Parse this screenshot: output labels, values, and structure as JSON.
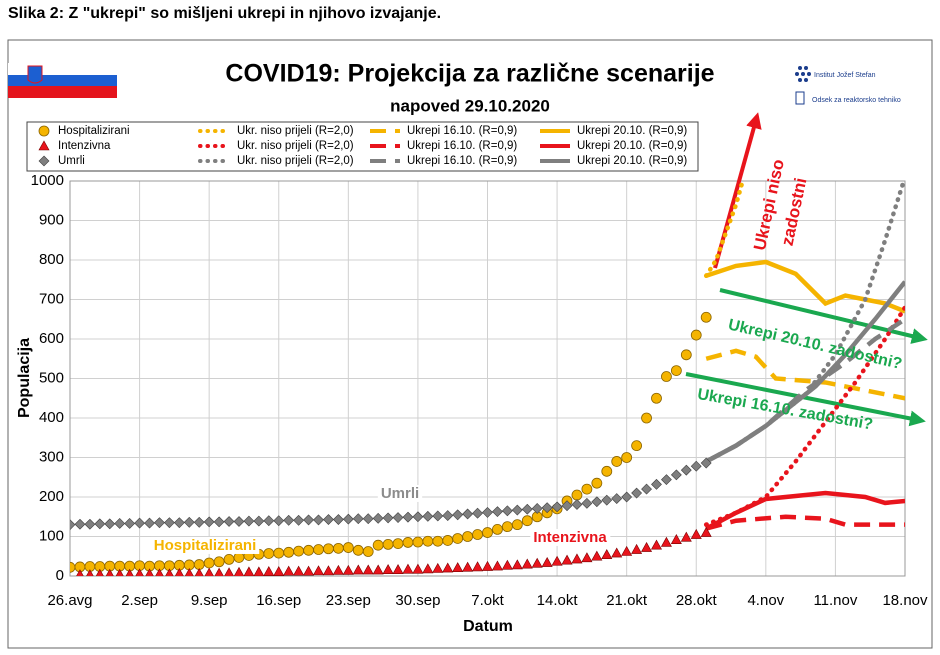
{
  "caption": "Slika 2: Z \"ukrepi\" so mišljeni ukrepi in njihovo izvajanje.",
  "logo": {
    "institute": "Institut Jožef Stefan",
    "department": "Odsek za reaktorsko tehniko"
  },
  "chart_data": {
    "type": "line",
    "title": "COVID19: Projekcija za različne scenarije",
    "subtitle": "napoved 29.10.2020",
    "x_label": "Datum",
    "y_label": "Populacija",
    "grid": true,
    "xlim": [
      0,
      84
    ],
    "xticks": [
      {
        "value": 0,
        "label": "26.avg"
      },
      {
        "value": 7,
        "label": "2.sep"
      },
      {
        "value": 14,
        "label": "9.sep"
      },
      {
        "value": 21,
        "label": "16.sep"
      },
      {
        "value": 28,
        "label": "23.sep"
      },
      {
        "value": 35,
        "label": "30.sep"
      },
      {
        "value": 42,
        "label": "7.okt"
      },
      {
        "value": 49,
        "label": "14.okt"
      },
      {
        "value": 56,
        "label": "21.okt"
      },
      {
        "value": 63,
        "label": "28.okt"
      },
      {
        "value": 70,
        "label": "4.nov"
      },
      {
        "value": 77,
        "label": "11.nov"
      },
      {
        "value": 84,
        "label": "18.nov"
      }
    ],
    "ylim": [
      0,
      1000
    ],
    "yticks": [
      0,
      100,
      200,
      300,
      400,
      500,
      600,
      700,
      800,
      900,
      1000
    ],
    "series": [
      {
        "name": "Hospitalizirani",
        "color": "#f5b400",
        "marker": "circle",
        "x": [
          0,
          1,
          2,
          3,
          4,
          5,
          6,
          7,
          8,
          9,
          10,
          11,
          12,
          13,
          14,
          15,
          16,
          17,
          18,
          19,
          20,
          21,
          22,
          23,
          24,
          25,
          26,
          27,
          28,
          29,
          30,
          31,
          32,
          33,
          34,
          35,
          36,
          37,
          38,
          39,
          40,
          41,
          42,
          43,
          44,
          45,
          46,
          47,
          48,
          49,
          50,
          51,
          52,
          53,
          54,
          55,
          56,
          57,
          58,
          59,
          60,
          61,
          62,
          63,
          64
        ],
        "values": [
          22,
          23,
          24,
          24,
          25,
          25,
          25,
          26,
          25,
          26,
          26,
          27,
          28,
          29,
          33,
          36,
          42,
          47,
          52,
          55,
          57,
          58,
          60,
          63,
          65,
          67,
          69,
          70,
          72,
          65,
          62,
          78,
          80,
          82,
          85,
          86,
          88,
          88,
          90,
          95,
          100,
          105,
          110,
          118,
          125,
          130,
          140,
          150,
          160,
          170,
          190,
          205,
          220,
          235,
          265,
          290,
          300,
          330,
          400,
          450,
          505,
          520,
          560,
          610,
          655
        ]
      },
      {
        "name": "Ukr. niso prijeli (R=2,0)",
        "color": "#f5b400",
        "dash": "dotted",
        "x": [
          64,
          65,
          66,
          67,
          68
        ],
        "values": [
          760,
          800,
          870,
          940,
          1030
        ]
      },
      {
        "name": "Ukrepi 16.10. (R=0,9)",
        "color": "#f5b400",
        "dash": "dashed",
        "x": [
          64,
          67,
          69,
          71,
          76,
          80,
          84
        ],
        "values": [
          550,
          570,
          555,
          500,
          490,
          470,
          450
        ]
      },
      {
        "name": "Ukrepi 20.10. (R=0,9)",
        "color": "#f5b400",
        "dash": "solid",
        "x": [
          64,
          67,
          70,
          73,
          76,
          78,
          80,
          82,
          84
        ],
        "values": [
          760,
          785,
          795,
          765,
          690,
          710,
          700,
          690,
          670
        ]
      },
      {
        "name": "Intenzivna",
        "color": "#e8141c",
        "marker": "triangle",
        "x": [
          1,
          2,
          3,
          4,
          5,
          6,
          7,
          8,
          9,
          10,
          11,
          12,
          13,
          14,
          15,
          16,
          17,
          18,
          19,
          20,
          21,
          22,
          23,
          24,
          25,
          26,
          27,
          28,
          29,
          30,
          31,
          32,
          33,
          34,
          35,
          36,
          37,
          38,
          39,
          40,
          41,
          42,
          43,
          44,
          45,
          46,
          47,
          48,
          49,
          50,
          51,
          52,
          53,
          54,
          55,
          56,
          57,
          58,
          59,
          60,
          61,
          62,
          63,
          64
        ],
        "values": [
          3,
          3,
          4,
          4,
          4,
          4,
          5,
          5,
          5,
          5,
          6,
          6,
          6,
          7,
          7,
          8,
          9,
          10,
          10,
          11,
          11,
          12,
          12,
          12,
          13,
          13,
          14,
          14,
          15,
          15,
          15,
          16,
          16,
          17,
          17,
          18,
          19,
          20,
          21,
          22,
          23,
          24,
          25,
          27,
          28,
          30,
          32,
          34,
          37,
          40,
          43,
          46,
          50,
          54,
          58,
          62,
          67,
          72,
          78,
          85,
          92,
          98,
          105,
          110
        ]
      },
      {
        "name": "Ukr. niso prijeli (R=2,0)",
        "color": "#e8141c",
        "dash": "dotted",
        "x": [
          64,
          67,
          70,
          73,
          76,
          79,
          82,
          84
        ],
        "values": [
          130,
          160,
          200,
          290,
          390,
          490,
          600,
          680
        ]
      },
      {
        "name": "Ukrepi 16.10. (R=0,9)",
        "color": "#e8141c",
        "dash": "dashed",
        "x": [
          64,
          67,
          72,
          76,
          78,
          84
        ],
        "values": [
          120,
          140,
          150,
          145,
          130,
          130
        ]
      },
      {
        "name": "Ukrepi 20.10. (R=0,9)",
        "color": "#e8141c",
        "dash": "solid",
        "x": [
          64,
          67,
          70,
          74,
          76,
          80,
          82,
          84
        ],
        "values": [
          120,
          160,
          195,
          205,
          210,
          200,
          185,
          190
        ]
      },
      {
        "name": "Umrli",
        "color": "#7f7f7f",
        "marker": "diamond",
        "x": [
          0,
          1,
          2,
          3,
          4,
          5,
          6,
          7,
          8,
          9,
          10,
          11,
          12,
          13,
          14,
          15,
          16,
          17,
          18,
          19,
          20,
          21,
          22,
          23,
          24,
          25,
          26,
          27,
          28,
          29,
          30,
          31,
          32,
          33,
          34,
          35,
          36,
          37,
          38,
          39,
          40,
          41,
          42,
          43,
          44,
          45,
          46,
          47,
          48,
          49,
          50,
          51,
          52,
          53,
          54,
          55,
          56,
          57,
          58,
          59,
          60,
          61,
          62,
          63,
          64
        ],
        "values": [
          130,
          131,
          131,
          132,
          132,
          133,
          133,
          134,
          134,
          135,
          135,
          135,
          136,
          136,
          137,
          137,
          138,
          138,
          139,
          139,
          140,
          140,
          141,
          141,
          142,
          142,
          143,
          143,
          144,
          145,
          145,
          146,
          147,
          148,
          149,
          150,
          151,
          152,
          153,
          155,
          157,
          159,
          161,
          163,
          165,
          167,
          169,
          171,
          173,
          175,
          178,
          181,
          184,
          188,
          192,
          196,
          200,
          210,
          220,
          232,
          244,
          256,
          268,
          278,
          286
        ]
      },
      {
        "name": "Ukr. niso prijeli (R=2,0)",
        "color": "#7f7f7f",
        "dash": "dotted",
        "x": [
          64,
          67,
          70,
          74,
          77,
          80,
          82,
          84
        ],
        "values": [
          290,
          330,
          380,
          460,
          560,
          700,
          850,
          1010
        ]
      },
      {
        "name": "Ukrepi 16.10. (R=0,9)",
        "color": "#7f7f7f",
        "dash": "dashed",
        "x": [
          64,
          67,
          70,
          74,
          78,
          81,
          84
        ],
        "values": [
          290,
          330,
          380,
          470,
          540,
          600,
          650
        ]
      },
      {
        "name": "Ukrepi 20.10. (R=0,9)",
        "color": "#7f7f7f",
        "dash": "solid",
        "x": [
          64,
          67,
          70,
          75,
          78,
          81,
          84
        ],
        "values": [
          290,
          330,
          380,
          480,
          560,
          650,
          745
        ]
      }
    ],
    "annotations": [
      {
        "text": "Ukrepi niso",
        "color": "#e8141c"
      },
      {
        "text": "zadostni",
        "color": "#e8141c"
      },
      {
        "text": "Ukrepi 20.10. zadostni?",
        "color": "#1aa84f"
      },
      {
        "text": "Ukrepi 16.10. zadostni?",
        "color": "#1aa84f"
      },
      {
        "text": "Umrli",
        "color": "#8c8c8c"
      },
      {
        "text": "Hospitalizirani",
        "color": "#f5b400"
      },
      {
        "text": "Intenzivna",
        "color": "#e8141c"
      }
    ]
  }
}
